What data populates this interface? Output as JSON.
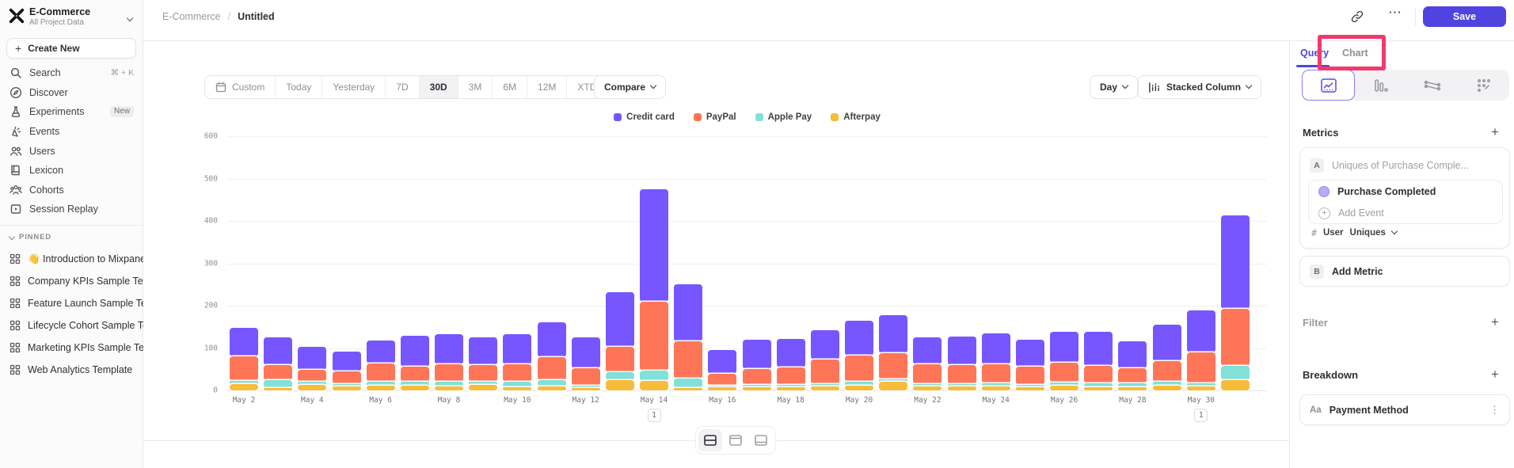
{
  "colors": {
    "accent": "#4f44e0",
    "annotation_box": "#f23a6d",
    "series": {
      "credit_card": "#7856FF",
      "paypal": "#FF7557",
      "apple_pay": "#80E1D9",
      "afterpay": "#F8BC3B"
    }
  },
  "sidebar": {
    "project": {
      "name": "E-Commerce",
      "subtitle": "All Project Data"
    },
    "create_new": "Create New",
    "nav": [
      {
        "id": "search",
        "label": "Search",
        "icon": "search-icon",
        "shortcut": "⌘ + K"
      },
      {
        "id": "discover",
        "label": "Discover",
        "icon": "discover-icon"
      },
      {
        "id": "experiments",
        "label": "Experiments",
        "icon": "experiments-icon",
        "badge": "New"
      },
      {
        "id": "events",
        "label": "Events",
        "icon": "events-icon"
      },
      {
        "id": "users",
        "label": "Users",
        "icon": "users-icon"
      },
      {
        "id": "lexicon",
        "label": "Lexicon",
        "icon": "lexicon-icon"
      },
      {
        "id": "cohorts",
        "label": "Cohorts",
        "icon": "cohorts-icon"
      },
      {
        "id": "session-replay",
        "label": "Session Replay",
        "icon": "session-replay-icon"
      }
    ],
    "pinned": {
      "header": "PINNED",
      "items": [
        "👋 Introduction to Mixpanel Bo",
        "Company KPIs Sample Templat",
        "Feature Launch Sample Templa",
        "Lifecycle Cohort Sample Temp",
        "Marketing KPIs Sample Templat",
        "Web Analytics Template"
      ]
    }
  },
  "header": {
    "breadcrumb_project": "E-Commerce",
    "breadcrumb_sep": "/",
    "breadcrumb_current": "Untitled",
    "dots_label": "⋯",
    "save_label": "Save"
  },
  "toolbar": {
    "date_ranges": [
      "Custom",
      "Today",
      "Yesterday",
      "7D",
      "30D",
      "3M",
      "6M",
      "12M",
      "XTD"
    ],
    "selected_range": "30D",
    "compare_label": "Compare",
    "granularity_label": "Day",
    "chart_type_label": "Stacked Column"
  },
  "query_panel": {
    "tab_query": "Query",
    "tab_chart": "Chart",
    "metrics_title": "Metrics",
    "slot_a": "A",
    "metric_placeholder": "Uniques of Purchase Comple...",
    "event_name": "Purchase Completed",
    "add_event_label": "Add Event",
    "agg_hash": "#",
    "agg_entity": "User",
    "agg_type": "Uniques",
    "slot_b": "B",
    "add_metric_label": "Add Metric",
    "filter_title": "Filter",
    "breakdown_title": "Breakdown",
    "breakdown_prefix": "Aa",
    "breakdown_property": "Payment Method",
    "plus": "+"
  },
  "chart_data": {
    "type": "bar",
    "stacked": true,
    "categories": [
      "May 2",
      "May 3",
      "May 4",
      "May 5",
      "May 6",
      "May 7",
      "May 8",
      "May 9",
      "May 10",
      "May 11",
      "May 12",
      "May 13",
      "May 14",
      "May 15",
      "May 16",
      "May 17",
      "May 18",
      "May 19",
      "May 20",
      "May 21",
      "May 22",
      "May 23",
      "May 24",
      "May 25",
      "May 26",
      "May 27",
      "May 28",
      "May 29",
      "May 30",
      "May 31"
    ],
    "x_tick_every": 2,
    "series": [
      {
        "name": "Credit card",
        "color": "#7856FF",
        "values": [
          68,
          65,
          55,
          47,
          55,
          73,
          71,
          65,
          71,
          82,
          73,
          129,
          265,
          135,
          55,
          70,
          67,
          70,
          83,
          90,
          63,
          68,
          73,
          63,
          73,
          80,
          63,
          85,
          98,
          221
        ]
      },
      {
        "name": "PayPal",
        "color": "#FF7557",
        "values": [
          57,
          36,
          28,
          30,
          43,
          36,
          41,
          40,
          42,
          53,
          40,
          60,
          163,
          87,
          28,
          37,
          42,
          57,
          62,
          62,
          47,
          45,
          46,
          43,
          47,
          42,
          36,
          50,
          74,
          134
        ]
      },
      {
        "name": "Apple Pay",
        "color": "#80E1D9",
        "values": [
          8,
          18,
          7,
          5,
          9,
          9,
          12,
          7,
          13,
          16,
          7,
          18,
          25,
          22,
          5,
          5,
          6,
          5,
          8,
          6,
          5,
          5,
          6,
          6,
          6,
          8,
          8,
          8,
          6,
          34
        ]
      },
      {
        "name": "Afterpay",
        "color": "#F8BC3B",
        "values": [
          15,
          6,
          13,
          10,
          11,
          11,
          9,
          13,
          7,
          9,
          5,
          25,
          22,
          6,
          7,
          8,
          7,
          10,
          12,
          20,
          10,
          10,
          10,
          8,
          12,
          8,
          8,
          12,
          10,
          24
        ]
      }
    ],
    "stack_order_bottom_to_top": [
      "Afterpay",
      "Apple Pay",
      "PayPal",
      "Credit card"
    ],
    "ylim": [
      0,
      600
    ],
    "yticks": [
      0,
      100,
      200,
      300,
      400,
      500,
      600
    ],
    "legend_position": "top",
    "grid": true,
    "annotations": [
      {
        "date": "May 14",
        "label": "1"
      },
      {
        "date": "May 30",
        "label": "1"
      }
    ]
  }
}
